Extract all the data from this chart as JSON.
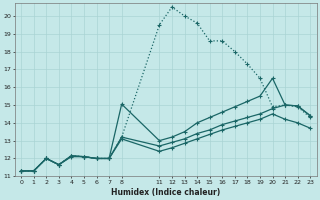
{
  "xlabel": "Humidex (Indice chaleur)",
  "bg_color": "#c5e8e8",
  "line_color": "#1a6666",
  "grid_color": "#aad4d4",
  "xlim": [
    -0.5,
    23.5
  ],
  "ylim": [
    11,
    20.7
  ],
  "yticks": [
    11,
    12,
    13,
    14,
    15,
    16,
    17,
    18,
    19,
    20
  ],
  "xticks_left": [
    0,
    1,
    2,
    3,
    4,
    5,
    6,
    7,
    8
  ],
  "xticks_right": [
    11,
    12,
    13,
    14,
    15,
    16,
    17,
    18,
    19,
    20,
    21,
    22,
    23
  ],
  "line1_dotted": {
    "x": [
      0,
      1,
      2,
      3,
      4,
      5,
      6,
      7,
      8,
      11,
      12,
      13,
      14,
      15,
      16,
      17,
      18,
      19,
      20,
      21,
      22,
      23
    ],
    "y": [
      11.3,
      11.3,
      12.0,
      11.65,
      12.15,
      12.1,
      12.0,
      12.0,
      13.2,
      19.5,
      20.5,
      20.0,
      19.6,
      18.6,
      18.6,
      18.0,
      17.3,
      16.5,
      14.9,
      15.0,
      14.9,
      14.3
    ]
  },
  "line2_solid_spike": {
    "x": [
      0,
      1,
      2,
      3,
      4,
      5,
      6,
      7,
      8,
      11,
      12,
      13,
      14,
      15,
      16,
      17,
      18,
      19,
      20,
      21,
      22,
      23
    ],
    "y": [
      11.3,
      11.3,
      12.0,
      11.65,
      12.15,
      12.1,
      12.0,
      12.0,
      15.05,
      13.0,
      13.2,
      13.5,
      14.0,
      14.3,
      14.6,
      14.9,
      15.2,
      15.5,
      16.5,
      15.0,
      14.95,
      14.4
    ]
  },
  "line3_solid": {
    "x": [
      0,
      1,
      2,
      3,
      4,
      5,
      6,
      7,
      8,
      11,
      12,
      13,
      14,
      15,
      16,
      17,
      18,
      19,
      20,
      21,
      22,
      23
    ],
    "y": [
      11.3,
      11.3,
      12.0,
      11.65,
      12.15,
      12.1,
      12.0,
      12.0,
      13.2,
      12.7,
      12.9,
      13.1,
      13.4,
      13.6,
      13.9,
      14.1,
      14.3,
      14.5,
      14.8,
      15.0,
      14.95,
      14.4
    ]
  },
  "line4_solid_low": {
    "x": [
      0,
      1,
      2,
      3,
      4,
      5,
      6,
      7,
      8,
      11,
      12,
      13,
      14,
      15,
      16,
      17,
      18,
      19,
      20,
      21,
      22,
      23
    ],
    "y": [
      11.3,
      11.3,
      12.0,
      11.65,
      12.1,
      12.1,
      12.0,
      12.0,
      13.1,
      12.4,
      12.6,
      12.85,
      13.1,
      13.35,
      13.6,
      13.8,
      14.0,
      14.2,
      14.5,
      14.2,
      14.0,
      13.7
    ]
  }
}
